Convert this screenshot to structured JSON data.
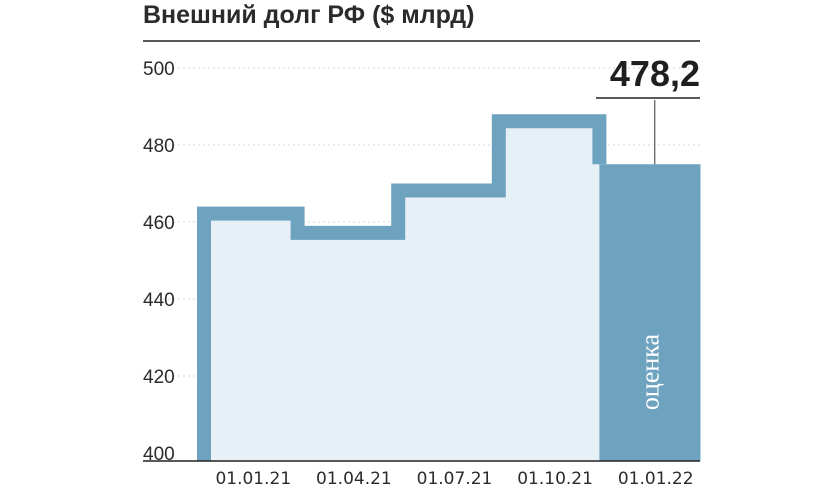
{
  "chart_data": {
    "type": "area",
    "title": "Внешний долг РФ ($ млрд)",
    "xlabel": "",
    "ylabel": "",
    "categories": [
      "01.01.21",
      "01.04.21",
      "01.07.21",
      "01.10.21",
      "01.01.22"
    ],
    "values": [
      464,
      459,
      470,
      488,
      475
    ],
    "ylim": [
      400,
      500
    ],
    "yticks": [
      400,
      420,
      440,
      460,
      480,
      500
    ],
    "estimate_index": 4,
    "estimate_label": "оценка",
    "callout": "478,2",
    "colors": {
      "outline": "#6ea3bf",
      "fill": "#e8f0f7",
      "estimate_fill": "#6ea3bf",
      "axis": "#222222",
      "text": "#2b2b2b"
    }
  }
}
